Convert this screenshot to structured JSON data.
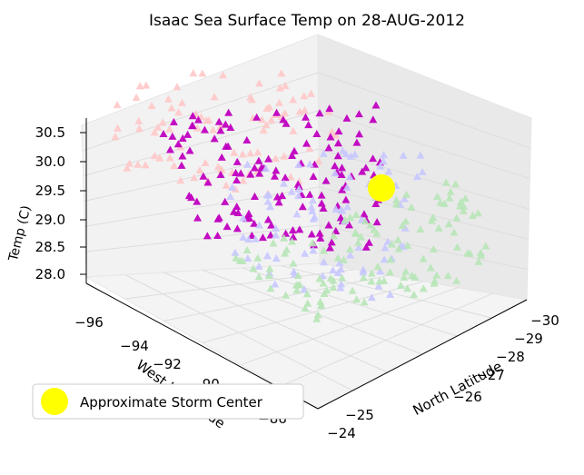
{
  "chart_data": {
    "type": "scatter",
    "projection": "3d",
    "title": "Isaac Sea Surface Temp on 28-AUG-2012",
    "xlabel": "West Longitude",
    "ylabel": "North Latitude",
    "zlabel": "Temp (C)",
    "xticks": [
      "−96",
      "−94",
      "−92",
      "−90",
      "−86"
    ],
    "yticks": [
      "−30",
      "−29",
      "−28",
      "−27",
      "−26",
      "−25",
      "−24"
    ],
    "zticks": [
      "30.5",
      "30.0",
      "29.5",
      "29.0",
      "28.5",
      "28.0"
    ],
    "xlim": [
      -97,
      -84
    ],
    "ylim": [
      -30.5,
      -23.5
    ],
    "zlim": [
      27.6,
      30.7
    ],
    "grid": true,
    "legend": {
      "position": "lower-left",
      "label": "Approximate Storm Center",
      "color": "#ffff00"
    },
    "marker": "triangle",
    "colors": {
      "warmest": "#ffc8c8",
      "warm": "#c000c0",
      "cool": "#c8c8ff",
      "coolest": "#b8e6b8",
      "storm": "#ffff00"
    },
    "storm_center": {
      "x": -88.5,
      "y": -28.2,
      "z": 29.6
    }
  }
}
